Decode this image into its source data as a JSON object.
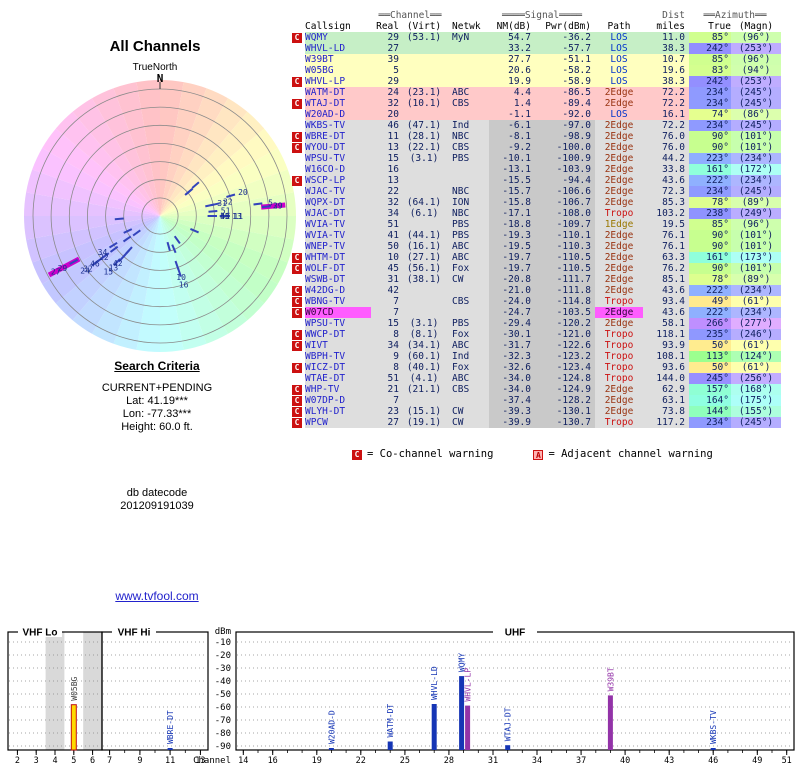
{
  "title": "All Channels",
  "radar": {
    "compass_label": "TrueNorth",
    "north_label": "N"
  },
  "search": {
    "heading": "Search Criteria",
    "mode": "CURRENT+PENDING",
    "lat": "Lat: 41.19***",
    "lon": "Lon: -77.33***",
    "height": "Height: 60.0 ft."
  },
  "datecode": {
    "line1": "db datecode",
    "line2": "201209191039"
  },
  "site_link": "www.tvfool.com",
  "colors": {
    "accent_link": "#2222cc",
    "warning_red": "#cc1111",
    "digital": "#1535b5",
    "analog": "#9333a8",
    "analog_lo_fill": "#ffd900",
    "analog_lo_stroke": "#c01010",
    "marker_blue": "#3344bb",
    "marker_magenta": "#cc00cc"
  },
  "table": {
    "group_headers": {
      "channel": "══Channel══",
      "signal": "════Signal════",
      "dist": "Dist",
      "azimuth": "══Azimuth══"
    },
    "columns": [
      "Callsign",
      "Real",
      "(Virt)",
      "Netwk",
      "NM(dB)",
      "Pwr(dBm)",
      "Path",
      "miles",
      "True",
      "(Magn)"
    ],
    "row_fields": [
      "callsign",
      "real_ch",
      "virt_ch",
      "network",
      "nm_db",
      "pwr_dbm",
      "path",
      "dist_miles",
      "az_true_deg",
      "az_magn_deg",
      "band",
      "warn",
      "highlight"
    ],
    "rows": [
      [
        "WQMY",
        29,
        "(53.1)",
        "MyN",
        54.7,
        -36.2,
        "LOS",
        11.0,
        85,
        96,
        "green",
        "C"
      ],
      [
        "WHVL-LD",
        27,
        "",
        "",
        33.2,
        -57.7,
        "LOS",
        38.3,
        242,
        253,
        "green",
        ""
      ],
      [
        "W39BT",
        39,
        "",
        "",
        27.7,
        -51.1,
        "LOS",
        10.7,
        85,
        96,
        "yellow",
        ""
      ],
      [
        "W05BG",
        5,
        "",
        "",
        20.6,
        -58.2,
        "LOS",
        19.6,
        83,
        94,
        "yellow",
        ""
      ],
      [
        "WHVL-LP",
        29,
        "",
        "",
        19.9,
        -58.9,
        "LOS",
        38.3,
        242,
        253,
        "yellow",
        "C"
      ],
      [
        "WATM-DT",
        24,
        "(23.1)",
        "ABC",
        4.4,
        -86.5,
        "2Edge",
        72.2,
        234,
        245,
        "pink",
        ""
      ],
      [
        "WTAJ-DT",
        32,
        "(10.1)",
        "CBS",
        1.4,
        -89.4,
        "2Edge",
        72.2,
        234,
        245,
        "pink",
        "C"
      ],
      [
        "W20AD-D",
        20,
        "",
        "",
        -1.1,
        -92.0,
        "LOS",
        16.1,
        74,
        86,
        "pink",
        ""
      ],
      [
        "WKBS-TV",
        46,
        "(47.1)",
        "Ind",
        -6.1,
        -97.0,
        "2Edge",
        72.2,
        234,
        245,
        "gray",
        ""
      ],
      [
        "WBRE-DT",
        11,
        "(28.1)",
        "NBC",
        -8.1,
        -98.9,
        "2Edge",
        76.0,
        90,
        101,
        "gray",
        "C"
      ],
      [
        "WYOU-DT",
        13,
        "(22.1)",
        "CBS",
        -9.2,
        -100.0,
        "2Edge",
        76.0,
        90,
        101,
        "gray",
        "C"
      ],
      [
        "WPSU-TV",
        15,
        "(3.1)",
        "PBS",
        -10.1,
        -100.9,
        "2Edge",
        44.2,
        223,
        234,
        "gray",
        ""
      ],
      [
        "W16CO-D",
        16,
        "",
        "",
        -13.1,
        -103.9,
        "2Edge",
        33.8,
        161,
        172,
        "gray",
        ""
      ],
      [
        "WSCP-LP",
        13,
        "",
        "",
        -15.5,
        -94.4,
        "2Edge",
        43.6,
        222,
        234,
        "gray",
        "C"
      ],
      [
        "WJAC-TV",
        22,
        "",
        "NBC",
        -15.7,
        -106.6,
        "2Edge",
        72.3,
        234,
        245,
        "gray",
        ""
      ],
      [
        "WQPX-DT",
        32,
        "(64.1)",
        "ION",
        -15.8,
        -106.7,
        "2Edge",
        85.3,
        78,
        89,
        "gray",
        ""
      ],
      [
        "WJAC-DT",
        34,
        "(6.1)",
        "NBC",
        -17.1,
        -108.0,
        "Tropo",
        103.2,
        238,
        249,
        "gray",
        ""
      ],
      [
        "WVIA-TV",
        51,
        "",
        "PBS",
        -18.8,
        -109.7,
        "1Edge",
        19.5,
        85,
        96,
        "gray",
        ""
      ],
      [
        "WVIA-TV",
        41,
        "(44.1)",
        "PBS",
        -19.3,
        -110.1,
        "2Edge",
        76.1,
        90,
        101,
        "gray",
        ""
      ],
      [
        "WNEP-TV",
        50,
        "(16.1)",
        "ABC",
        -19.5,
        -110.3,
        "2Edge",
        76.1,
        90,
        101,
        "gray",
        ""
      ],
      [
        "WHTM-DT",
        10,
        "(27.1)",
        "ABC",
        -19.7,
        -110.5,
        "2Edge",
        63.3,
        161,
        173,
        "gray",
        "C"
      ],
      [
        "WOLF-DT",
        45,
        "(56.1)",
        "Fox",
        -19.7,
        -110.5,
        "2Edge",
        76.2,
        90,
        101,
        "gray",
        "C"
      ],
      [
        "WSWB-DT",
        31,
        "(38.1)",
        "CW",
        -20.8,
        -111.7,
        "2Edge",
        85.1,
        78,
        89,
        "gray",
        ""
      ],
      [
        "W42DG-D",
        42,
        "",
        "",
        -21.0,
        -111.8,
        "2Edge",
        43.6,
        222,
        234,
        "gray",
        "C"
      ],
      [
        "WBNG-TV",
        7,
        "",
        "CBS",
        -24.0,
        -114.8,
        "Tropo",
        93.4,
        49,
        61,
        "gray",
        "C"
      ],
      [
        "W07CD",
        7,
        "",
        "",
        -24.7,
        -103.5,
        "2Edge",
        43.6,
        222,
        234,
        "gray",
        "C",
        1
      ],
      [
        "WPSU-TV",
        15,
        "(3.1)",
        "PBS",
        -29.4,
        -120.2,
        "2Edge",
        58.1,
        266,
        277,
        "gray",
        ""
      ],
      [
        "WWCP-DT",
        8,
        "(8.1)",
        "Fox",
        -30.1,
        -121.0,
        "Tropo",
        118.1,
        235,
        246,
        "gray",
        "C"
      ],
      [
        "WIVT",
        34,
        "(34.1)",
        "ABC",
        -31.7,
        -122.6,
        "Tropo",
        93.9,
        50,
        61,
        "gray",
        "C"
      ],
      [
        "WBPH-TV",
        9,
        "(60.1)",
        "Ind",
        -32.3,
        -123.2,
        "Tropo",
        108.1,
        113,
        124,
        "gray",
        ""
      ],
      [
        "WICZ-DT",
        8,
        "(40.1)",
        "Fox",
        -32.6,
        -123.4,
        "Tropo",
        93.6,
        50,
        61,
        "gray",
        "C"
      ],
      [
        "WTAE-DT",
        51,
        "(4.1)",
        "ABC",
        -34.0,
        -124.8,
        "Tropo",
        144.0,
        245,
        256,
        "gray",
        ""
      ],
      [
        "WHP-TV",
        21,
        "(21.1)",
        "CBS",
        -34.0,
        -124.9,
        "2Edge",
        62.9,
        157,
        168,
        "gray",
        "C"
      ],
      [
        "W07DP-D",
        7,
        "",
        "",
        -37.4,
        -128.2,
        "2Edge",
        63.1,
        164,
        175,
        "gray",
        "C"
      ],
      [
        "WLYH-DT",
        23,
        "(15.1)",
        "CW",
        -39.3,
        -130.1,
        "2Edge",
        73.8,
        144,
        155,
        "gray",
        "C"
      ],
      [
        "WPCW",
        27,
        "(19.1)",
        "CW",
        -39.9,
        -130.7,
        "Tropo",
        117.2,
        234,
        245,
        "gray",
        "C"
      ]
    ]
  },
  "legend": {
    "c_label": "C",
    "c_text": "= Co-channel warning",
    "a_label": "A",
    "a_text": "= Adjacent channel warning"
  },
  "chart_data": [
    {
      "type": "radar",
      "title": "All Channels",
      "orientation": "TrueNorth",
      "rings": 7,
      "point_fields": [
        "real_channel",
        "azimuth_true_deg",
        "nm_db"
      ],
      "points": [
        [
          29,
          85,
          54.7
        ],
        [
          27,
          242,
          33.2
        ],
        [
          39,
          85,
          27.7
        ],
        [
          5,
          83,
          20.6
        ],
        [
          29,
          242,
          19.9
        ],
        [
          24,
          234,
          4.4
        ],
        [
          32,
          234,
          1.4
        ],
        [
          20,
          74,
          -1.1
        ],
        [
          46,
          234,
          -6.1
        ],
        [
          11,
          90,
          -8.1
        ],
        [
          13,
          90,
          -9.2
        ],
        [
          15,
          223,
          -10.1
        ],
        [
          16,
          161,
          -13.1
        ],
        [
          13,
          222,
          -15.5
        ],
        [
          22,
          234,
          -15.7
        ],
        [
          32,
          78,
          -15.8
        ],
        [
          34,
          238,
          -17.1
        ],
        [
          51,
          85,
          -18.8
        ],
        [
          41,
          90,
          -19.3
        ],
        [
          50,
          90,
          -19.5
        ],
        [
          10,
          161,
          -19.7
        ],
        [
          45,
          90,
          -19.7
        ],
        [
          31,
          78,
          -20.8
        ],
        [
          42,
          222,
          -21.0
        ],
        [
          7,
          49,
          -24.0
        ],
        [
          7,
          222,
          -24.7
        ],
        [
          15,
          266,
          -29.4
        ],
        [
          8,
          235,
          -30.1
        ],
        [
          34,
          50,
          -31.7
        ],
        [
          9,
          113,
          -32.3
        ],
        [
          8,
          50,
          -32.6
        ],
        [
          51,
          245,
          -34.0
        ],
        [
          21,
          157,
          -34.0
        ],
        [
          7,
          164,
          -37.4
        ],
        [
          23,
          144,
          -39.3
        ],
        [
          27,
          234,
          -39.9
        ]
      ]
    },
    {
      "type": "bar",
      "xlabel": "Channel",
      "ylabel": "dBm",
      "ylim": [
        -95,
        -5
      ],
      "yticks": [
        -10,
        -20,
        -30,
        -40,
        -50,
        -60,
        -70,
        -80,
        -90
      ],
      "sections": [
        {
          "name": "VHF Lo",
          "ch_min": 2,
          "ch_max": 6,
          "xticks": [
            2,
            3,
            4,
            5,
            6
          ],
          "shaded_channels": [
            4,
            6
          ]
        },
        {
          "name": "VHF Hi",
          "ch_min": 7,
          "ch_max": 13,
          "xticks": [
            7,
            9,
            11,
            13
          ],
          "shaded_channels": []
        },
        {
          "name": "UHF",
          "ch_min": 14,
          "ch_max": 51,
          "xticks": [
            14,
            16,
            19,
            22,
            25,
            28,
            31,
            34,
            37,
            40,
            43,
            46,
            49,
            51
          ],
          "shaded_channels": []
        }
      ],
      "station_fields": [
        "callsign",
        "channel",
        "dbm",
        "kind",
        "dx"
      ],
      "stations": [
        [
          "W05BG",
          5,
          -58.2,
          "analog_lo",
          0
        ],
        [
          "WBRE-DT",
          11,
          -98.9,
          "digital",
          0
        ],
        [
          "W20AD-D",
          20,
          -92.0,
          "digital",
          0
        ],
        [
          "WATM-DT",
          24,
          -86.5,
          "digital",
          0
        ],
        [
          "WHVL-LD",
          27,
          -57.7,
          "digital",
          0
        ],
        [
          "WQMY",
          29,
          -36.2,
          "digital",
          -2
        ],
        [
          "WHVL-LP",
          29,
          -58.9,
          "analog",
          4
        ],
        [
          "WTAJ-DT",
          32,
          -89.4,
          "digital",
          0
        ],
        [
          "W39BT",
          39,
          -51.1,
          "analog",
          0
        ],
        [
          "WKBS-TV",
          46,
          -97.0,
          "digital",
          0
        ]
      ]
    }
  ]
}
